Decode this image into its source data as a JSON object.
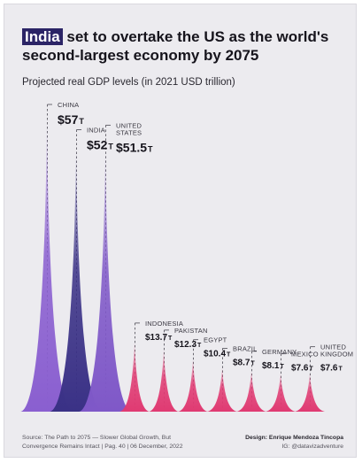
{
  "header": {
    "title_highlight": "India",
    "title_rest": " set to overtake the US as the world's second-largest economy by 2075",
    "subtitle": "Projected real GDP levels (in 2021 USD trillion)"
  },
  "chart_data": {
    "type": "area",
    "title": "India set to overtake the US as the world's second-largest economy by 2075",
    "subtitle": "Projected real GDP levels (in 2021 USD trillion)",
    "unit": "T",
    "series": [
      {
        "name": "CHINA",
        "label_lines": [
          "CHINA"
        ],
        "value": 57,
        "display": "$57",
        "color": "#8a5fd0"
      },
      {
        "name": "INDIA",
        "label_lines": [
          "INDIA"
        ],
        "value": 52,
        "display": "$52",
        "color": "#3a3186"
      },
      {
        "name": "UNITED STATES",
        "label_lines": [
          "UNITED",
          "STATES"
        ],
        "value": 51.5,
        "display": "$51.5",
        "color": "#7f58c8"
      },
      {
        "name": "INDONESIA",
        "label_lines": [
          "INDONESIA"
        ],
        "value": 13.7,
        "display": "$13.7",
        "color": "#e03a72"
      },
      {
        "name": "PAKISTAN",
        "label_lines": [
          "PAKISTAN"
        ],
        "value": 12.3,
        "display": "$12.3",
        "color": "#e03a72"
      },
      {
        "name": "EGYPT",
        "label_lines": [
          "EGYPT"
        ],
        "value": 10.4,
        "display": "$10.4",
        "color": "#e03a72"
      },
      {
        "name": "BRAZIL",
        "label_lines": [
          "BRAZIL"
        ],
        "value": 8.7,
        "display": "$8.7",
        "color": "#e03a72"
      },
      {
        "name": "GERMANY",
        "label_lines": [
          "GERMANY"
        ],
        "value": 8.1,
        "display": "$8.1",
        "color": "#e03a72"
      },
      {
        "name": "MEXICO",
        "label_lines": [
          "MEXICO"
        ],
        "value": 7.6,
        "display": "$7.6",
        "color": "#e03a72"
      },
      {
        "name": "UNITED KINGDOM",
        "label_lines": [
          "UNITED",
          "KINGDOM"
        ],
        "value": 7.6,
        "display": "$7.6",
        "color": "#e03a72"
      }
    ]
  },
  "footer": {
    "source_line1": "Source: The Path to 2075 — Slower Global Growth, But",
    "source_line2": "Convergence Remains Intact | Pag. 40 | 06 December, 2022",
    "design_line": "Design: Enrique Mendoza Tincopa",
    "ig_line": "IG: @datavizadventure"
  }
}
